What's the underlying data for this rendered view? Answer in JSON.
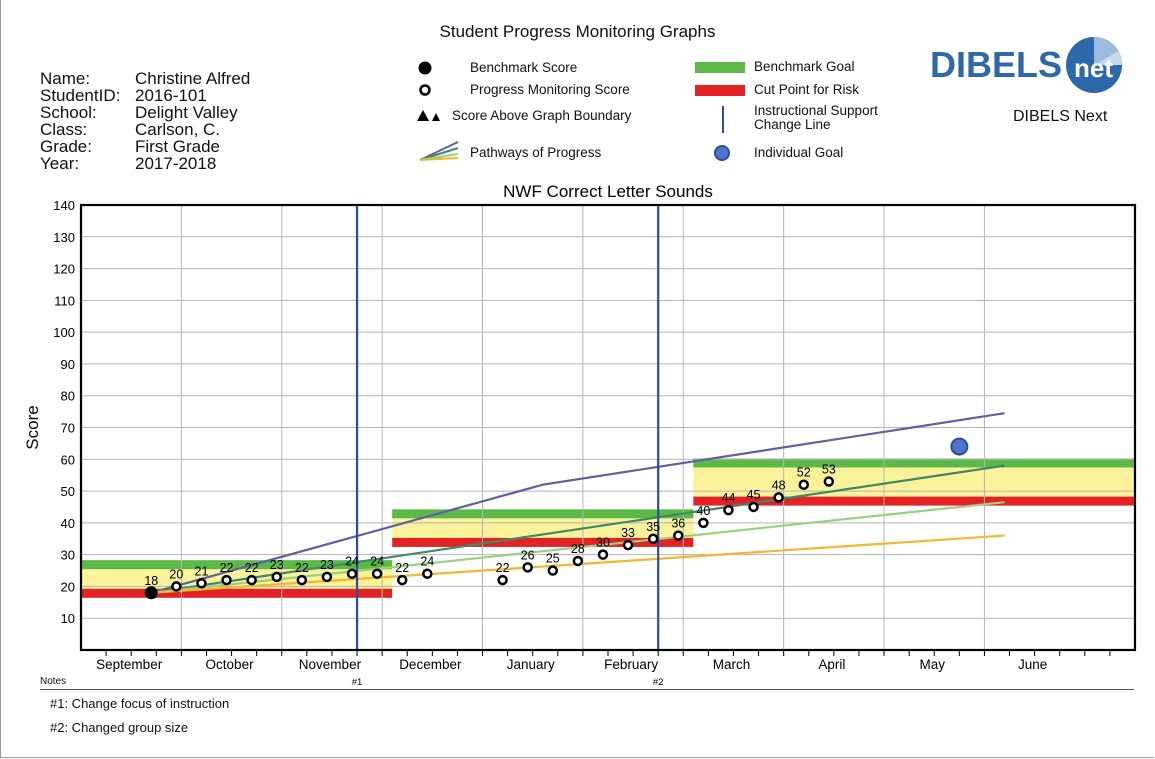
{
  "page_title": "Student Progress Monitoring Graphs",
  "student": [
    {
      "label": "Name:",
      "value": "Christine Alfred"
    },
    {
      "label": "StudentID:",
      "value": "2016-101"
    },
    {
      "label": "School:",
      "value": "Delight Valley"
    },
    {
      "label": "Class:",
      "value": "Carlson, C."
    },
    {
      "label": "Grade:",
      "value": "First Grade"
    },
    {
      "label": "Year:",
      "value": "2017-2018"
    }
  ],
  "legend": {
    "benchmark_score": "Benchmark Score",
    "progress_score": "Progress Monitoring Score",
    "above_boundary": "Score Above Graph Boundary",
    "pathways": "Pathways of Progress",
    "benchmark_goal": "Benchmark Goal",
    "cut_point": "Cut Point for Risk",
    "support_line_1": "Instructional Support",
    "support_line_2": "Change Line",
    "individual_goal": "Individual Goal"
  },
  "logo": {
    "text_left": "DIBELS",
    "text_right": "net",
    "subtitle": "DIBELS Next"
  },
  "colors": {
    "benchmark_goal": "#5cb947",
    "cut_point": "#e32226",
    "zone": "#fbf39b",
    "support_line": "#2d4b9e",
    "pathway_top": "#5e5fa4",
    "pathway_2": "#3e8a6a",
    "pathway_3": "#9ccf7f",
    "pathway_4": "#f3b72a",
    "goal_fill": "#4f75c9"
  },
  "chart_data": {
    "type": "scatter",
    "title": "NWF Correct Letter Sounds",
    "ylabel": "Score",
    "ylim": [
      0,
      140
    ],
    "yticks": [
      10,
      20,
      30,
      40,
      50,
      60,
      70,
      80,
      90,
      100,
      110,
      120,
      130,
      140
    ],
    "xlim": [
      0,
      10.5
    ],
    "months": [
      "September",
      "October",
      "November",
      "December",
      "January",
      "February",
      "March",
      "April",
      "May",
      "June"
    ],
    "benchmark_score": {
      "x": 0.7,
      "y": 18,
      "label": "18"
    },
    "progress_scores": [
      {
        "x": 0.95,
        "y": 20,
        "label": "20"
      },
      {
        "x": 1.2,
        "y": 21,
        "label": "21"
      },
      {
        "x": 1.45,
        "y": 22,
        "label": "22"
      },
      {
        "x": 1.7,
        "y": 22,
        "label": "22"
      },
      {
        "x": 1.95,
        "y": 23,
        "label": "23"
      },
      {
        "x": 2.2,
        "y": 22,
        "label": "22"
      },
      {
        "x": 2.45,
        "y": 23,
        "label": "23"
      },
      {
        "x": 2.7,
        "y": 24,
        "label": "24"
      },
      {
        "x": 2.95,
        "y": 24,
        "label": "24"
      },
      {
        "x": 3.2,
        "y": 22,
        "label": "22"
      },
      {
        "x": 3.45,
        "y": 24,
        "label": "24"
      },
      {
        "x": 4.2,
        "y": 22,
        "label": "22"
      },
      {
        "x": 4.45,
        "y": 26,
        "label": "26"
      },
      {
        "x": 4.7,
        "y": 25,
        "label": "25"
      },
      {
        "x": 4.95,
        "y": 28,
        "label": "28"
      },
      {
        "x": 5.2,
        "y": 30,
        "label": "30"
      },
      {
        "x": 5.45,
        "y": 33,
        "label": "33"
      },
      {
        "x": 5.7,
        "y": 35,
        "label": "35"
      },
      {
        "x": 5.95,
        "y": 36,
        "label": "36"
      },
      {
        "x": 6.2,
        "y": 40,
        "label": "40"
      },
      {
        "x": 6.45,
        "y": 44,
        "label": "44"
      },
      {
        "x": 6.7,
        "y": 45,
        "label": "45"
      },
      {
        "x": 6.95,
        "y": 48,
        "label": "48"
      },
      {
        "x": 7.2,
        "y": 52,
        "label": "52"
      },
      {
        "x": 7.45,
        "y": 53,
        "label": "53"
      }
    ],
    "individual_goal": {
      "x": 8.75,
      "y": 64
    },
    "benchmark_periods": [
      {
        "x0": 0,
        "x1": 3.1,
        "goal": 27,
        "cut": 18
      },
      {
        "x0": 3.1,
        "x1": 6.1,
        "goal": 43,
        "cut": 34
      },
      {
        "x0": 6.1,
        "x1": 10.5,
        "goal": 59,
        "cut": 47
      }
    ],
    "support_change_lines": [
      {
        "x": 2.75,
        "label": "#1"
      },
      {
        "x": 5.75,
        "label": "#2"
      }
    ],
    "pathways": [
      {
        "color": "#5e5fa4",
        "points": [
          [
            0.7,
            18
          ],
          [
            4.6,
            52
          ],
          [
            9.2,
            74.5
          ]
        ]
      },
      {
        "color": "#3e8a6a",
        "points": [
          [
            0.7,
            18
          ],
          [
            9.2,
            58
          ]
        ]
      },
      {
        "color": "#9ccf7f",
        "points": [
          [
            0.7,
            18
          ],
          [
            9.2,
            46.5
          ]
        ]
      },
      {
        "color": "#f3b72a",
        "points": [
          [
            0.7,
            18
          ],
          [
            9.2,
            36
          ]
        ]
      }
    ]
  },
  "notes": {
    "header": "Notes",
    "items": [
      "#1:  Change focus of instruction",
      "#2:  Changed group size"
    ]
  }
}
